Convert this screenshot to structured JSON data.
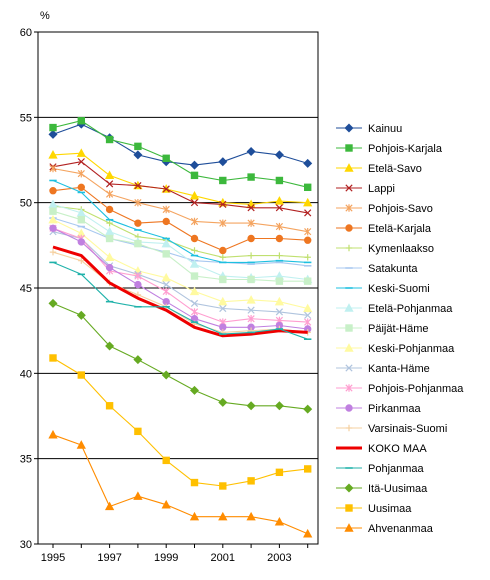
{
  "chart_data": {
    "type": "line",
    "title": "",
    "xlabel": "",
    "ylabel": "%",
    "xlim": [
      1995,
      2004
    ],
    "ylim": [
      30,
      60
    ],
    "x_ticks": [
      1995,
      1997,
      1999,
      2001,
      2003
    ],
    "y_ticks": [
      30,
      35,
      40,
      45,
      50,
      55,
      60
    ],
    "grid": "horizontal",
    "legend_position": "right",
    "x": [
      1995,
      1996,
      1997,
      1998,
      1999,
      2000,
      2001,
      2002,
      2003,
      2004
    ],
    "series": [
      {
        "name": "Kainuu",
        "color": "#1f4e9a",
        "marker": "diamond",
        "values": [
          54.0,
          54.6,
          53.8,
          52.8,
          52.4,
          52.2,
          52.4,
          53.0,
          52.8,
          52.3
        ]
      },
      {
        "name": "Pohjois-Karjala",
        "color": "#3cb83c",
        "marker": "square",
        "values": [
          54.4,
          54.8,
          53.7,
          53.3,
          52.6,
          51.6,
          51.3,
          51.5,
          51.3,
          50.9
        ]
      },
      {
        "name": "Etelä-Savo",
        "color": "#ffd700",
        "marker": "triangle",
        "values": [
          52.8,
          52.9,
          51.6,
          51.0,
          50.8,
          50.4,
          50.0,
          49.9,
          50.1,
          50.0
        ]
      },
      {
        "name": "Lappi",
        "color": "#b22222",
        "marker": "x",
        "values": [
          52.1,
          52.4,
          51.1,
          51.0,
          50.8,
          50.0,
          49.9,
          49.7,
          49.7,
          49.4
        ]
      },
      {
        "name": "Pohjois-Savo",
        "color": "#f4a460",
        "marker": "asterisk",
        "values": [
          52.0,
          51.7,
          50.5,
          50.0,
          49.6,
          48.9,
          48.8,
          48.8,
          48.6,
          48.3
        ]
      },
      {
        "name": "Etelä-Karjala",
        "color": "#ee7621",
        "marker": "circle",
        "values": [
          50.7,
          50.9,
          49.6,
          48.8,
          48.9,
          47.9,
          47.2,
          47.9,
          47.9,
          47.8
        ]
      },
      {
        "name": "Kymenlaakso",
        "color": "#c0e070",
        "marker": "plus",
        "values": [
          49.8,
          49.6,
          48.8,
          48.0,
          47.8,
          47.2,
          46.8,
          46.9,
          46.9,
          46.8
        ]
      },
      {
        "name": "Satakunta",
        "color": "#a8c8f0",
        "marker": "dash",
        "values": [
          49.1,
          48.6,
          47.9,
          47.5,
          47.1,
          46.6,
          46.5,
          46.4,
          46.5,
          46.3
        ]
      },
      {
        "name": "Keski-Suomi",
        "color": "#1ec0e0",
        "marker": "dash",
        "values": [
          51.3,
          50.6,
          49.0,
          48.4,
          47.9,
          46.9,
          46.5,
          46.5,
          46.6,
          46.5
        ]
      },
      {
        "name": "Etelä-Pohjanmaa",
        "color": "#c0f0f0",
        "marker": "triangle",
        "values": [
          49.9,
          49.4,
          48.3,
          47.7,
          47.6,
          46.4,
          45.7,
          45.6,
          45.7,
          45.5
        ]
      },
      {
        "name": "Päijät-Häme",
        "color": "#c8f0c8",
        "marker": "square",
        "values": [
          49.5,
          49.0,
          47.9,
          47.6,
          47.0,
          45.7,
          45.5,
          45.5,
          45.4,
          45.4
        ]
      },
      {
        "name": "Keski-Pohjanmaa",
        "color": "#fffaa0",
        "marker": "triangle",
        "values": [
          49.0,
          48.2,
          46.8,
          46.0,
          45.6,
          44.8,
          44.2,
          44.3,
          44.2,
          43.8
        ]
      },
      {
        "name": "Kanta-Häme",
        "color": "#b0c4de",
        "marker": "x",
        "values": [
          48.3,
          47.9,
          46.3,
          45.8,
          45.2,
          44.1,
          43.8,
          43.7,
          43.6,
          43.4
        ]
      },
      {
        "name": "Pohjois-Pohjanmaa",
        "color": "#ff9ed0",
        "marker": "asterisk",
        "values": [
          48.5,
          47.9,
          46.0,
          45.7,
          44.8,
          43.6,
          43.0,
          43.2,
          43.1,
          43.0
        ]
      },
      {
        "name": "Pirkanmaa",
        "color": "#c080e0",
        "marker": "circle",
        "values": [
          48.5,
          47.7,
          46.2,
          45.2,
          44.2,
          43.2,
          42.7,
          42.7,
          42.8,
          42.6
        ]
      },
      {
        "name": "Varsinais-Suomi",
        "color": "#f5d0a0",
        "marker": "plus",
        "values": [
          47.1,
          46.6,
          45.3,
          44.6,
          43.9,
          42.9,
          42.4,
          42.5,
          42.6,
          42.4
        ]
      },
      {
        "name": "KOKO MAA",
        "color": "#ee0000",
        "marker": "none",
        "bold": true,
        "values": [
          47.4,
          46.9,
          45.3,
          44.4,
          43.7,
          42.7,
          42.2,
          42.3,
          42.5,
          42.4
        ]
      },
      {
        "name": "Pohjanmaa",
        "color": "#20b2aa",
        "marker": "dash",
        "values": [
          46.5,
          45.8,
          44.2,
          43.9,
          43.9,
          43.0,
          42.3,
          42.4,
          42.6,
          42.0
        ]
      },
      {
        "name": "Itä-Uusimaa",
        "color": "#66aa22",
        "marker": "diamond",
        "values": [
          44.1,
          43.4,
          41.6,
          40.8,
          39.9,
          39.0,
          38.3,
          38.1,
          38.1,
          37.9
        ]
      },
      {
        "name": "Uusimaa",
        "color": "#ffc000",
        "marker": "square",
        "values": [
          40.9,
          39.9,
          38.1,
          36.6,
          34.9,
          33.6,
          33.4,
          33.7,
          34.2,
          34.4
        ]
      },
      {
        "name": "Ahvenanmaa",
        "color": "#ff8c00",
        "marker": "triangle",
        "values": [
          36.4,
          35.8,
          32.2,
          32.8,
          32.3,
          31.6,
          31.6,
          31.6,
          31.3,
          30.6
        ]
      }
    ]
  }
}
